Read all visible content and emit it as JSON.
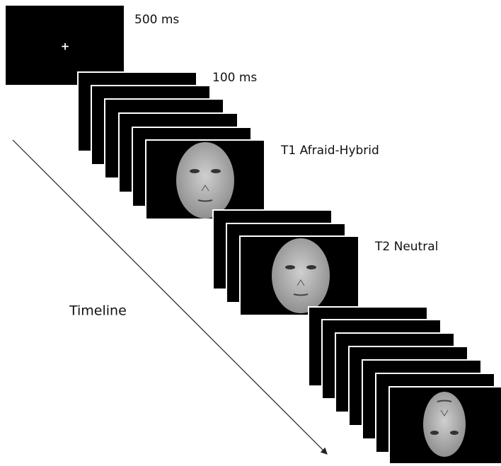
{
  "frames": {
    "fixation": {
      "duration": "500 ms",
      "symbol": "+"
    },
    "distractor": {
      "duration": "100 ms"
    },
    "t1": {
      "label": "T1 Afraid-Hybrid"
    },
    "t2": {
      "label": "T2 Neutral"
    }
  },
  "axis": {
    "label": "Timeline"
  }
}
